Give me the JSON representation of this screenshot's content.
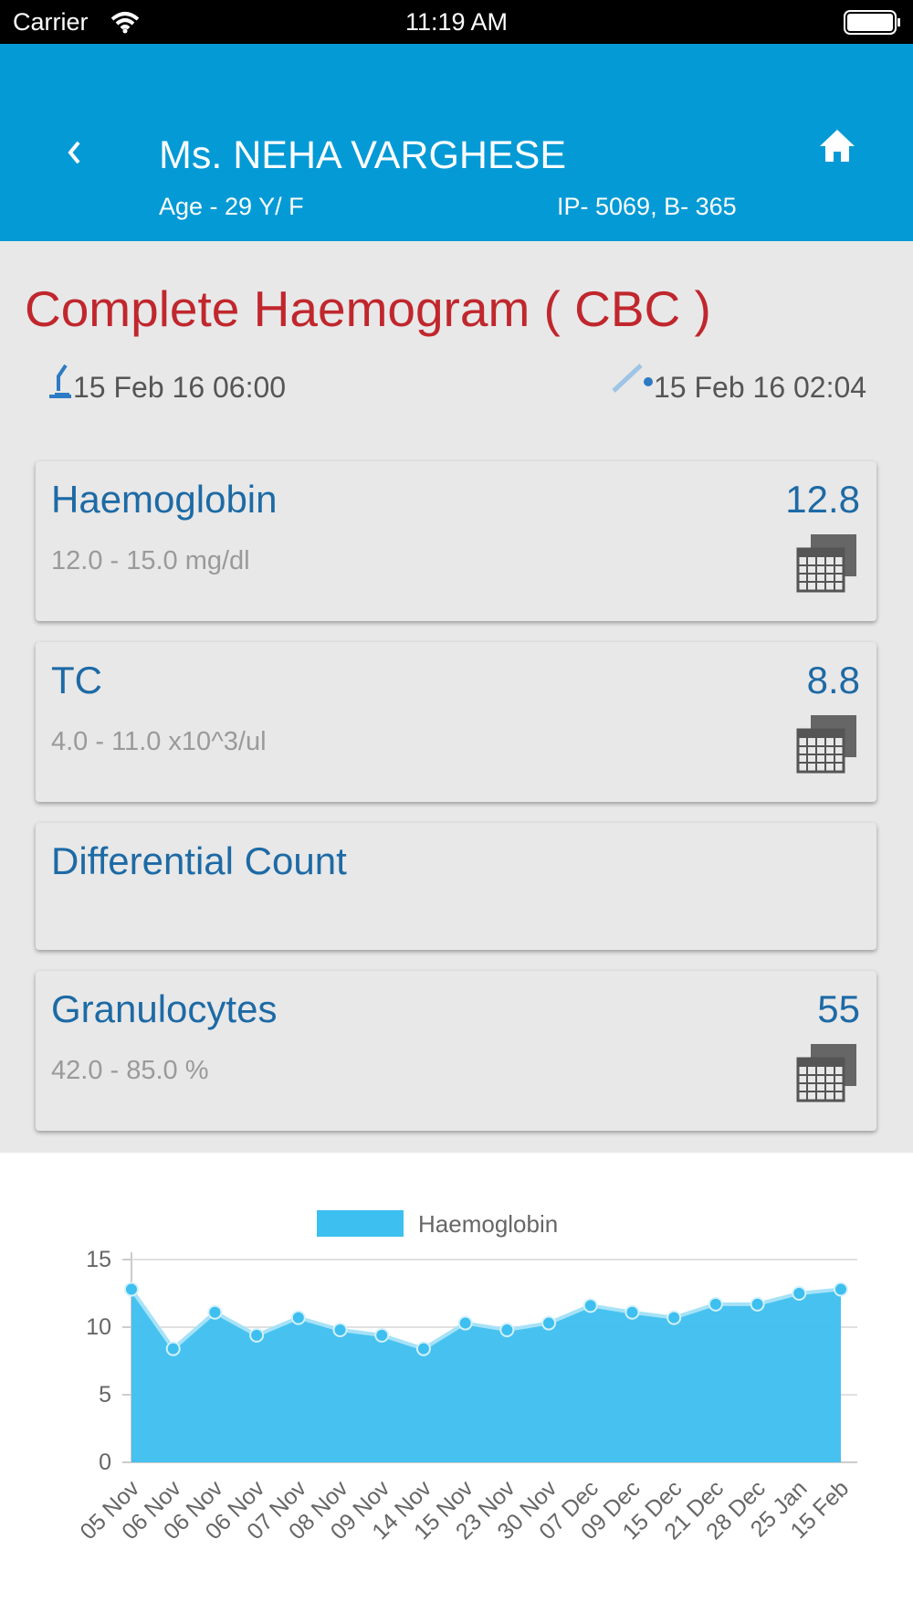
{
  "status_bar": {
    "carrier": "Carrier",
    "time": "11:19 AM"
  },
  "header": {
    "name": "Ms. NEHA VARGHESE",
    "age": "Age - 29 Y/ F",
    "ip": "IP- 5069, B- 365"
  },
  "report": {
    "title": "Complete Haemogram ( CBC )",
    "collected": "15 Feb 16 06:00",
    "received": "15 Feb 16 02:04"
  },
  "tests": [
    {
      "name": "Haemoglobin",
      "range": "12.0 - 15.0 mg/dl",
      "value": "12.8"
    },
    {
      "name": "TC",
      "range": "4.0 - 11.0 x10^3/ul",
      "value": "8.8"
    },
    {
      "name": "Differential Count"
    },
    {
      "name": "Granulocytes",
      "range": "42.0 - 85.0 %",
      "value": "55"
    }
  ],
  "chart_data": {
    "type": "area",
    "categories": [
      "05 Nov",
      "06 Nov",
      "06 Nov",
      "06 Nov",
      "07 Nov",
      "08 Nov",
      "09 Nov",
      "14 Nov",
      "15 Nov",
      "23 Nov",
      "30 Nov",
      "07 Dec",
      "09 Dec",
      "15 Dec",
      "21 Dec",
      "28 Dec",
      "25 Jan",
      "15 Feb"
    ],
    "series": [
      {
        "name": "Haemoglobin",
        "color": "#3dbfef",
        "values": [
          12.8,
          8.4,
          11.1,
          9.4,
          10.7,
          9.8,
          9.4,
          8.4,
          10.3,
          9.8,
          10.3,
          11.6,
          11.1,
          10.7,
          11.7,
          11.7,
          12.5,
          12.8
        ]
      }
    ],
    "ylim": [
      0,
      15
    ],
    "yticks": [
      0,
      5,
      10,
      15
    ],
    "grid": true
  }
}
